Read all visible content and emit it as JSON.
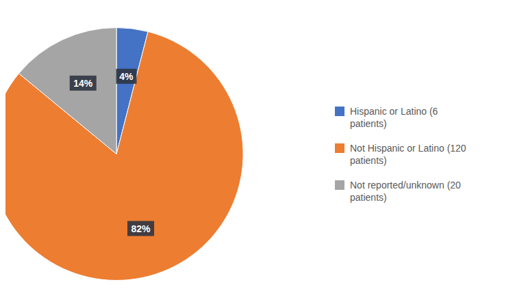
{
  "chart_data": {
    "type": "pie",
    "categories": [
      "Hispanic or Latino (6\npatients)",
      "Not Hispanic or Latino (120\npatients)",
      "Not reported/unknown (20\npatients)"
    ],
    "values": [
      4,
      82,
      14
    ],
    "value_labels": [
      "4%",
      "82%",
      "14%"
    ],
    "data_labels": true,
    "colors": [
      "#4472C4",
      "#ED7D31",
      "#A5A5A5"
    ]
  }
}
